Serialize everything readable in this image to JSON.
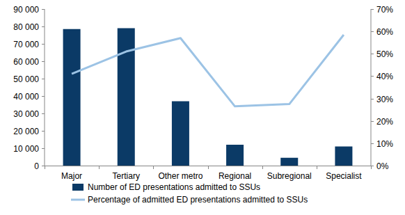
{
  "chart_data": {
    "type": "bar",
    "categories": [
      "Major",
      "Tertiary",
      "Other metro",
      "Regional",
      "Subregional",
      "Specialist"
    ],
    "series": [
      {
        "name": "Number of ED presentations admitted to SSUs",
        "type": "bar",
        "color": "#0b3a66",
        "values": [
          78500,
          79000,
          37000,
          12000,
          4500,
          11000
        ]
      },
      {
        "name": "Percentage of admitted ED presentations admitted to SSUs",
        "type": "line",
        "axis": "y2",
        "color": "#9cc3e5",
        "values": [
          41,
          51,
          57,
          26.5,
          27.5,
          58.5
        ]
      }
    ],
    "ylim": [
      0,
      90000
    ],
    "yticks": [
      0,
      {
        "value": 10000,
        "label": "10 000"
      },
      {
        "value": 20000,
        "label": "20 000"
      },
      {
        "value": 30000,
        "label": "30 000"
      },
      {
        "value": 40000,
        "label": "40 000"
      },
      {
        "value": 50000,
        "label": "50 000"
      },
      {
        "value": 60000,
        "label": "60 000"
      },
      {
        "value": 70000,
        "label": "70 000"
      },
      {
        "value": 80000,
        "label": "80 000"
      },
      {
        "value": 90000,
        "label": "90 000"
      }
    ],
    "y2lim": [
      0,
      70
    ],
    "y2ticks": [
      {
        "value": 0,
        "label": "0%"
      },
      {
        "value": 10,
        "label": "10%"
      },
      {
        "value": 20,
        "label": "20%"
      },
      {
        "value": 30,
        "label": "30%"
      },
      {
        "value": 40,
        "label": "40%"
      },
      {
        "value": 50,
        "label": "50%"
      },
      {
        "value": 60,
        "label": "60%"
      },
      {
        "value": 70,
        "label": "70%"
      }
    ],
    "grid": false,
    "legend": "bottom"
  }
}
